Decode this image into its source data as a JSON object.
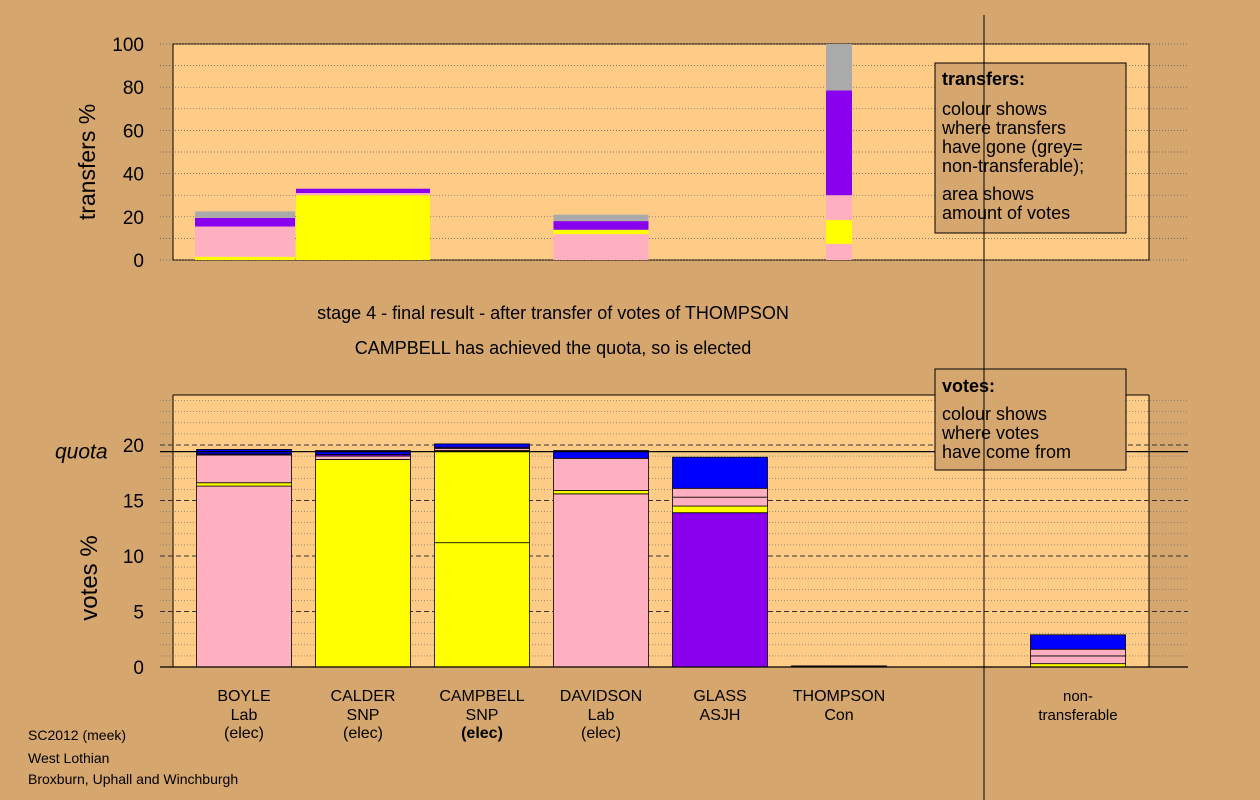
{
  "chart_data": [
    {
      "type": "bar",
      "title": "",
      "ylabel": "transfers %",
      "ylim": [
        0,
        100
      ],
      "yticks": [
        "0",
        "20",
        "40",
        "60",
        "80",
        "100"
      ],
      "categories": [
        "BOYLE",
        "CALDER",
        "CAMPBELL",
        "DAVIDSON",
        "GLASS",
        "THOMPSON",
        "non-transferable"
      ],
      "bars": [
        {
          "candidate": "BOYLE",
          "segments": [
            {
              "color": "#ffff00",
              "value": 1.5
            },
            {
              "color": "#ffb0c0",
              "value": 14
            },
            {
              "color": "#8800ee",
              "value": 4
            },
            {
              "color": "#aaaaaa",
              "value": 3
            }
          ]
        },
        {
          "candidate": "CALDER",
          "segments": [
            {
              "color": "#ffff00",
              "value": 30
            },
            {
              "color": "#ffb0c0",
              "value": 1
            },
            {
              "color": "#8800ee",
              "value": 2
            }
          ]
        },
        {
          "candidate": "DAVIDSON",
          "segments": [
            {
              "color": "#ffb0c0",
              "value": 12
            },
            {
              "color": "#ffff00",
              "value": 2
            },
            {
              "color": "#8800ee",
              "value": 4
            },
            {
              "color": "#aaaaaa",
              "value": 3
            }
          ]
        },
        {
          "candidate": "THOMPSON",
          "segments": [
            {
              "color": "#ffb0c0",
              "value": 7.5
            },
            {
              "color": "#ffff00",
              "value": 11
            },
            {
              "color": "#ffb0c0",
              "value": 11.5
            },
            {
              "color": "#8800ee",
              "value": 48.5
            },
            {
              "color": "#aaaaaa",
              "value": 21.5
            }
          ]
        }
      ],
      "legend_box": {
        "title": "transfers:",
        "lines1": [
          "colour shows",
          "where transfers",
          "have gone (grey=",
          "non-transferable);"
        ],
        "lines2": [
          "area shows",
          "amount of votes"
        ]
      }
    },
    {
      "type": "bar",
      "title": "",
      "ylabel": "votes %",
      "ylim": [
        0,
        25
      ],
      "yticks": [
        "0",
        "5",
        "10",
        "15",
        "20"
      ],
      "quota_label": "quota",
      "quota_value": 19.4,
      "categories": [
        "BOYLE",
        "CALDER",
        "CAMPBELL",
        "DAVIDSON",
        "GLASS",
        "THOMPSON",
        "non-transferable"
      ],
      "bars": [
        {
          "candidate": "BOYLE",
          "segments": [
            {
              "color": "#ffb0c0",
              "value": 16.3
            },
            {
              "color": "#ffff00",
              "value": 0.3
            },
            {
              "color": "#ffb0c0",
              "value": 2.5
            },
            {
              "color": "#8800ee",
              "value": 0.1
            },
            {
              "color": "#0000ff",
              "value": 0.4
            }
          ]
        },
        {
          "candidate": "CALDER",
          "segments": [
            {
              "color": "#ffff00",
              "value": 18.7
            },
            {
              "color": "#ffb0c0",
              "value": 0.3
            },
            {
              "color": "#8800ee",
              "value": 0.15
            },
            {
              "color": "#0000ff",
              "value": 0.35
            }
          ]
        },
        {
          "candidate": "CAMPBELL",
          "segments": [
            {
              "color": "#ffff00",
              "value": 11.2
            },
            {
              "color": "#ffff00",
              "value": 8.3
            },
            {
              "color": "#ffb0c0",
              "value": 0.2
            },
            {
              "color": "#8800ee",
              "value": 0.1
            },
            {
              "color": "#0000ff",
              "value": 0.3
            }
          ]
        },
        {
          "candidate": "DAVIDSON",
          "segments": [
            {
              "color": "#ffb0c0",
              "value": 15.6
            },
            {
              "color": "#ffff00",
              "value": 0.3
            },
            {
              "color": "#ffb0c0",
              "value": 2.9
            },
            {
              "color": "#0000ff",
              "value": 0.7
            }
          ]
        },
        {
          "candidate": "GLASS",
          "segments": [
            {
              "color": "#8800ee",
              "value": 13.9
            },
            {
              "color": "#ffff00",
              "value": 0.6
            },
            {
              "color": "#ffb0c0",
              "value": 0.8
            },
            {
              "color": "#ffb0c0",
              "value": 0.8
            },
            {
              "color": "#0000ff",
              "value": 2.8
            }
          ]
        },
        {
          "candidate": "THOMPSON",
          "segments": [
            {
              "color": "#000000",
              "value": 0.1
            }
          ]
        },
        {
          "candidate": "non-transferable",
          "segments": [
            {
              "color": "#ffff00",
              "value": 0.3
            },
            {
              "color": "#ffb0c0",
              "value": 0.7
            },
            {
              "color": "#ffb0c0",
              "value": 0.6
            },
            {
              "color": "#0000ff",
              "value": 1.3
            }
          ]
        }
      ],
      "legend_box": {
        "title": "votes:",
        "lines1": [
          "colour shows",
          "where votes",
          "have come from"
        ]
      }
    }
  ],
  "stage_text": "stage 4 - final result - after transfer of votes of THOMPSON",
  "elected_text": "CAMPBELL has achieved the quota, so is elected",
  "candidates": [
    {
      "name": "BOYLE",
      "party": "Lab",
      "status": "(elec)",
      "bold_status": false
    },
    {
      "name": "CALDER",
      "party": "SNP",
      "status": "(elec)",
      "bold_status": false
    },
    {
      "name": "CAMPBELL",
      "party": "SNP",
      "status": "(elec)",
      "bold_status": true
    },
    {
      "name": "DAVIDSON",
      "party": "Lab",
      "status": "(elec)",
      "bold_status": false
    },
    {
      "name": "GLASS",
      "party": "ASJH",
      "status": "",
      "bold_status": false
    },
    {
      "name": "THOMPSON",
      "party": "Con",
      "status": "",
      "bold_status": false
    },
    {
      "name": "non-",
      "party": "transferable",
      "status": "",
      "bold_status": false
    }
  ],
  "footer": {
    "line1": "SC2012 (meek)",
    "line2": "West Lothian",
    "line3": "Broxburn, Uphall and Winchburgh"
  },
  "colors": {
    "background": "#d5a66e",
    "plot_area": "#ffcc88",
    "pink": "#ffb0c0",
    "yellow": "#ffff00",
    "purple": "#8800ee",
    "blue": "#0000ff",
    "grey": "#aaaaaa",
    "legend_box": "#d5a66e"
  }
}
